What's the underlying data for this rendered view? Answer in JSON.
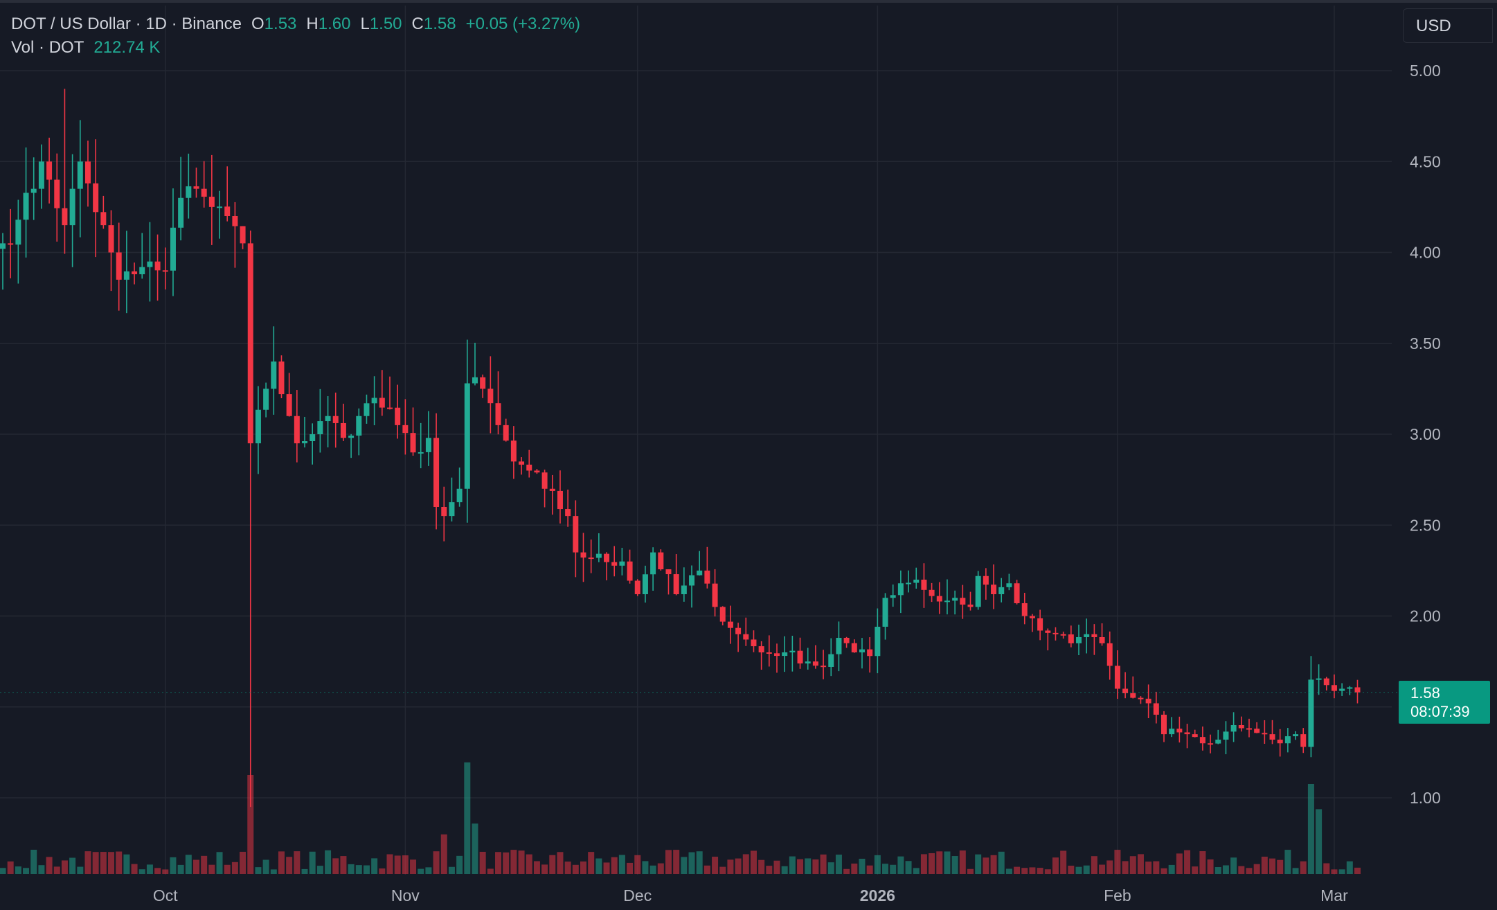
{
  "header": {
    "symbol": "DOT / US Dollar · 1D · Binance",
    "o_label": "O",
    "o_value": "1.53",
    "h_label": "H",
    "h_value": "1.60",
    "l_label": "L",
    "l_value": "1.50",
    "c_label": "C",
    "c_value": "1.58",
    "change": "+0.05 (+3.27%)",
    "vol_label": "Vol · DOT",
    "vol_value": "212.74 K"
  },
  "currency_button": "USD",
  "last_price": {
    "value": "1.58",
    "countdown": "08:07:39",
    "price": 1.58
  },
  "colors": {
    "up": "#22ab94",
    "down": "#f23645",
    "background": "#161a25",
    "grid": "#242833",
    "axis_text": "#b2b5be",
    "tag": "#089981"
  },
  "chart_data": {
    "type": "candlestick",
    "title": "DOT / US Dollar · 1D · Binance",
    "y_axis": {
      "side": "right",
      "ticks": [
        "5.00",
        "4.50",
        "4.00",
        "3.50",
        "3.00",
        "2.50",
        "2.00",
        "1.00"
      ],
      "tick_values": [
        5.0,
        4.5,
        4.0,
        3.5,
        3.0,
        2.5,
        2.0,
        1.0
      ],
      "ylim": [
        0.6,
        5.35
      ]
    },
    "x_axis": {
      "ticks": [
        "Oct",
        "Nov",
        "Dec",
        "2026",
        "Feb",
        "Mar"
      ],
      "tick_day_index": [
        21,
        52,
        82,
        113,
        144,
        172
      ],
      "bold_tick": "2026"
    },
    "grid": true,
    "day_count": 176,
    "series": [
      {
        "name": "DOT / US Dollar",
        "ohlc_anchors": [
          [
            0,
            4.05
          ],
          [
            2,
            4.18
          ],
          [
            4,
            4.35
          ],
          [
            5,
            4.5
          ],
          [
            6,
            4.4
          ],
          [
            8,
            4.15
          ],
          [
            9,
            4.35
          ],
          [
            10,
            4.5
          ],
          [
            11,
            4.38
          ],
          [
            13,
            4.15
          ],
          [
            14,
            4.0
          ],
          [
            15,
            3.85
          ],
          [
            17,
            3.88
          ],
          [
            19,
            3.95
          ],
          [
            21,
            3.9
          ],
          [
            23,
            4.3
          ],
          [
            25,
            4.35
          ],
          [
            27,
            4.25
          ],
          [
            29,
            4.2
          ],
          [
            31,
            4.05
          ],
          [
            32,
            2.95
          ],
          [
            34,
            3.25
          ],
          [
            35,
            3.4
          ],
          [
            37,
            3.1
          ],
          [
            38,
            2.95
          ],
          [
            40,
            3.0
          ],
          [
            42,
            3.1
          ],
          [
            44,
            2.98
          ],
          [
            46,
            3.1
          ],
          [
            48,
            3.2
          ],
          [
            51,
            3.05
          ],
          [
            53,
            2.9
          ],
          [
            55,
            2.98
          ],
          [
            56,
            2.6
          ],
          [
            57,
            2.55
          ],
          [
            59,
            2.7
          ],
          [
            60,
            3.28
          ],
          [
            62,
            3.25
          ],
          [
            64,
            3.05
          ],
          [
            66,
            2.85
          ],
          [
            68,
            2.8
          ],
          [
            70,
            2.7
          ],
          [
            73,
            2.55
          ],
          [
            74,
            2.35
          ],
          [
            76,
            2.32
          ],
          [
            80,
            2.3
          ],
          [
            82,
            2.12
          ],
          [
            84,
            2.35
          ],
          [
            87,
            2.12
          ],
          [
            90,
            2.25
          ],
          [
            92,
            2.05
          ],
          [
            95,
            1.9
          ],
          [
            98,
            1.8
          ],
          [
            101,
            1.8
          ],
          [
            104,
            1.75
          ],
          [
            106,
            1.72
          ],
          [
            108,
            1.88
          ],
          [
            110,
            1.8
          ],
          [
            112,
            1.78
          ],
          [
            114,
            2.1
          ],
          [
            116,
            2.18
          ],
          [
            118,
            2.2
          ],
          [
            121,
            2.08
          ],
          [
            123,
            2.1
          ],
          [
            125,
            2.05
          ],
          [
            126,
            2.22
          ],
          [
            128,
            2.12
          ],
          [
            130,
            2.18
          ],
          [
            132,
            2.0
          ],
          [
            134,
            1.92
          ],
          [
            136,
            1.9
          ],
          [
            138,
            1.85
          ],
          [
            140,
            1.9
          ],
          [
            142,
            1.85
          ],
          [
            144,
            1.6
          ],
          [
            146,
            1.55
          ],
          [
            148,
            1.52
          ],
          [
            150,
            1.35
          ],
          [
            151,
            1.38
          ],
          [
            153,
            1.35
          ],
          [
            155,
            1.3
          ],
          [
            157,
            1.32
          ],
          [
            159,
            1.4
          ],
          [
            161,
            1.38
          ],
          [
            163,
            1.35
          ],
          [
            165,
            1.3
          ],
          [
            167,
            1.35
          ],
          [
            168,
            1.28
          ],
          [
            169,
            1.65
          ],
          [
            171,
            1.62
          ],
          [
            173,
            1.6
          ],
          [
            175,
            1.58
          ]
        ]
      },
      {
        "name": "Vol · DOT",
        "spikes": [
          [
            32,
            5.5
          ],
          [
            60,
            6.2
          ],
          [
            169,
            5.0
          ],
          [
            170,
            3.6
          ],
          [
            61,
            2.8
          ],
          [
            57,
            2.2
          ]
        ]
      }
    ],
    "notable": {
      "crash_day": 32,
      "crash_low": 0.95,
      "nov_high": 3.52,
      "sep_high": 4.9,
      "mar_spike_high": 1.78
    }
  }
}
